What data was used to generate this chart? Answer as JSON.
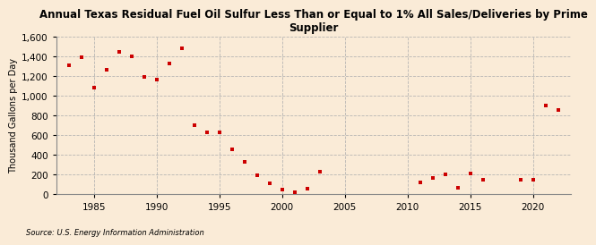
{
  "title": "Annual Texas Residual Fuel Oil Sulfur Less Than or Equal to 1% All Sales/Deliveries by Prime\nSupplier",
  "ylabel": "Thousand Gallons per Day",
  "source": "Source: U.S. Energy Information Administration",
  "background_color": "#faebd7",
  "marker_color": "#cc0000",
  "years": [
    1983,
    1984,
    1985,
    1986,
    1987,
    1988,
    1989,
    1990,
    1991,
    1992,
    1993,
    1994,
    1995,
    1996,
    1997,
    1998,
    1999,
    2000,
    2001,
    2002,
    2003,
    2011,
    2012,
    2013,
    2014,
    2015,
    2016,
    2019,
    2020,
    2021,
    2022
  ],
  "values": [
    1310,
    1390,
    1080,
    1270,
    1450,
    1400,
    1190,
    1170,
    1330,
    1480,
    700,
    630,
    630,
    460,
    330,
    190,
    110,
    45,
    20,
    60,
    230,
    120,
    170,
    200,
    70,
    210,
    150,
    150,
    150,
    900,
    855
  ],
  "ylim": [
    0,
    1600
  ],
  "yticks": [
    0,
    200,
    400,
    600,
    800,
    1000,
    1200,
    1400,
    1600
  ],
  "xlim": [
    1982,
    2023
  ],
  "xticks": [
    1985,
    1990,
    1995,
    2000,
    2005,
    2010,
    2015,
    2020
  ]
}
